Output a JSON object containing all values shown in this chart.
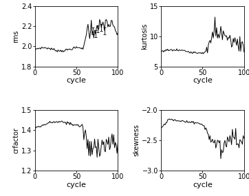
{
  "figsize": [
    3.62,
    2.85
  ],
  "dpi": 100,
  "bg_color": "#ffffff",
  "plots": [
    {
      "ylabel": "rms",
      "xlabel": "cycle",
      "ylim": [
        1.8,
        2.4
      ],
      "yticks": [
        1.8,
        2.0,
        2.2,
        2.4
      ],
      "xlim": [
        0,
        100
      ],
      "xticks": [
        0,
        50,
        100
      ]
    },
    {
      "ylabel": "kurtosis",
      "xlabel": "cycle",
      "ylim": [
        5,
        15
      ],
      "yticks": [
        5,
        10,
        15
      ],
      "xlim": [
        0,
        100
      ],
      "xticks": [
        0,
        50,
        100
      ]
    },
    {
      "ylabel": "crfactor",
      "xlabel": "cycle",
      "ylim": [
        1.2,
        1.5
      ],
      "yticks": [
        1.2,
        1.3,
        1.4,
        1.5
      ],
      "xlim": [
        0,
        100
      ],
      "xticks": [
        0,
        50,
        100
      ]
    },
    {
      "ylabel": "skewness",
      "xlabel": "cycle",
      "ylim": [
        -3,
        -2
      ],
      "yticks": [
        -3.0,
        -2.5,
        -2.0
      ],
      "xlim": [
        0,
        100
      ],
      "xticks": [
        0,
        50,
        100
      ]
    }
  ],
  "line_color": "black",
  "line_width": 0.7
}
